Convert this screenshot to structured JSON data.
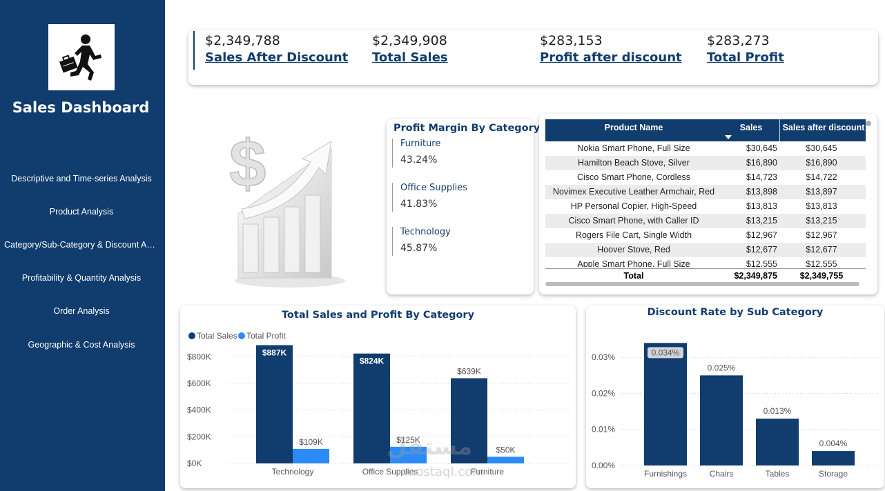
{
  "sidebar": {
    "title": "Sales Dashboard",
    "logo_icon": "running-businessman-icon",
    "nav": [
      {
        "label": "Descriptive and Time-series Analysis"
      },
      {
        "label": "Product Analysis"
      },
      {
        "label": "Category/Sub-Category & Discount Analysis"
      },
      {
        "label": "Profitability & Quantity Analysis"
      },
      {
        "label": "Order Analysis"
      },
      {
        "label": "Geographic & Cost Analysis"
      }
    ]
  },
  "kpis": [
    {
      "value": "$2,349,788",
      "label": "Sales After Discount"
    },
    {
      "value": "$2,349,908",
      "label": "Total Sales"
    },
    {
      "value": "$283,153",
      "label": "Profit after discount"
    },
    {
      "value": "$283,273",
      "label": "Total Profit"
    }
  ],
  "hero_icon": "dollar-growth-chart-icon",
  "profit_margin": {
    "title": "Profit Margin By Category",
    "items": [
      {
        "name": "Furniture",
        "value": "43.24%"
      },
      {
        "name": "Office Supplies",
        "value": "41.83%"
      },
      {
        "name": "Technology",
        "value": "45.87%"
      }
    ]
  },
  "product_table": {
    "headers": {
      "name": "Product Name",
      "sales": "Sales",
      "discount": "Sales after discount"
    },
    "rows": [
      {
        "name": "Nokia Smart Phone, Full Size",
        "sales": "$30,645",
        "discount": "$30,645"
      },
      {
        "name": "Hamilton Beach Stove, Silver",
        "sales": "$16,890",
        "discount": "$16,890"
      },
      {
        "name": "Cisco Smart Phone, Cordless",
        "sales": "$14,723",
        "discount": "$14,722"
      },
      {
        "name": "Novimex Executive Leather Armchair, Red",
        "sales": "$13,898",
        "discount": "$13,897"
      },
      {
        "name": "HP Personal Copier, High-Speed",
        "sales": "$13,813",
        "discount": "$13,813"
      },
      {
        "name": "Cisco Smart Phone, with Caller ID",
        "sales": "$13,215",
        "discount": "$13,215"
      },
      {
        "name": "Rogers File Cart, Single Width",
        "sales": "$12,967",
        "discount": "$12,967"
      },
      {
        "name": "Hoover Stove, Red",
        "sales": "$12,677",
        "discount": "$12,677"
      },
      {
        "name": "Apple Smart Phone, Full Size",
        "sales": "$12,555",
        "discount": "$12,555"
      }
    ],
    "total": {
      "label": "Total",
      "sales": "$2,349,875",
      "discount": "$2,349,755"
    }
  },
  "watermark": {
    "arabic": "مستقل",
    "latin": "mostaql.com"
  },
  "chart_data": [
    {
      "type": "bar",
      "title": "Total Sales and Profit By Category",
      "categories": [
        "Technology",
        "Office Supplies",
        "Furniture"
      ],
      "series": [
        {
          "name": "Total Sales",
          "values": [
            887,
            824,
            639
          ],
          "labels": [
            "$887K",
            "$824K",
            "$639K"
          ],
          "color": "#103c6e"
        },
        {
          "name": "Total Profit",
          "values": [
            109,
            125,
            50
          ],
          "labels": [
            "$109K",
            "$125K",
            "$50K"
          ],
          "color": "#2b8af5"
        }
      ],
      "yticks": [
        "$0K",
        "$200K",
        "$400K",
        "$600K",
        "$800K"
      ],
      "ylim": [
        0,
        900
      ],
      "legend": "top-left",
      "grid": true
    },
    {
      "type": "bar",
      "title": "Discount Rate by Sub Category",
      "categories": [
        "Furnishings",
        "Chairs",
        "Tables",
        "Storage"
      ],
      "values": [
        0.034,
        0.025,
        0.013,
        0.004
      ],
      "labels": [
        "0.034%",
        "0.025%",
        "0.013%",
        "0.004%"
      ],
      "color": "#103c6e",
      "yticks": [
        "0.00%",
        "0.01%",
        "0.02%",
        "0.03%"
      ],
      "ylim": [
        0,
        0.035
      ],
      "grid": true
    }
  ]
}
